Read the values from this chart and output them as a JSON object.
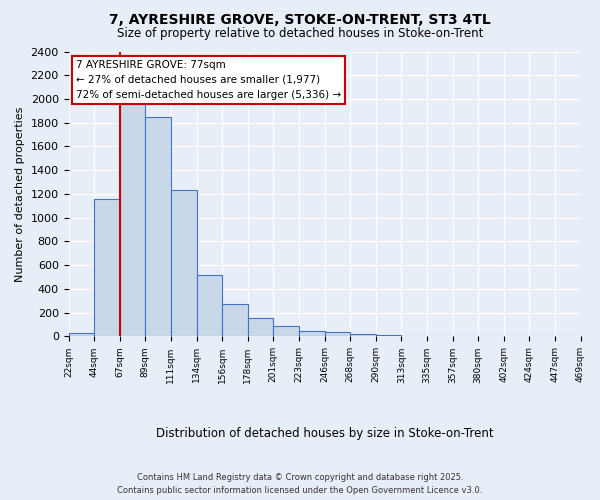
{
  "title": "7, AYRESHIRE GROVE, STOKE-ON-TRENT, ST3 4TL",
  "subtitle": "Size of property relative to detached houses in Stoke-on-Trent",
  "xlabel": "Distribution of detached houses by size in Stoke-on-Trent",
  "ylabel": "Number of detached properties",
  "bar_values": [
    25,
    1160,
    1980,
    1850,
    1230,
    520,
    275,
    155,
    90,
    45,
    40,
    20,
    10,
    5,
    5,
    3,
    2,
    2,
    2,
    2
  ],
  "bin_labels": [
    "22sqm",
    "44sqm",
    "67sqm",
    "89sqm",
    "111sqm",
    "134sqm",
    "156sqm",
    "178sqm",
    "201sqm",
    "223sqm",
    "246sqm",
    "268sqm",
    "290sqm",
    "313sqm",
    "335sqm",
    "357sqm",
    "380sqm",
    "402sqm",
    "424sqm",
    "447sqm",
    "469sqm"
  ],
  "bar_color": "#c8d8e8",
  "bar_edge_color": "#4472c4",
  "background_color": "#e8eef8",
  "grid_color": "#ffffff",
  "vline_color": "#cc0000",
  "annotation_text": "7 AYRESHIRE GROVE: 77sqm\n← 27% of detached houses are smaller (1,977)\n72% of semi-detached houses are larger (5,336) →",
  "annotation_box_color": "#ffffff",
  "annotation_box_edge": "#cc0000",
  "ylim": [
    0,
    2400
  ],
  "yticks": [
    0,
    200,
    400,
    600,
    800,
    1000,
    1200,
    1400,
    1600,
    1800,
    2000,
    2200,
    2400
  ],
  "footer_line1": "Contains HM Land Registry data © Crown copyright and database right 2025.",
  "footer_line2": "Contains public sector information licensed under the Open Government Licence v3.0."
}
